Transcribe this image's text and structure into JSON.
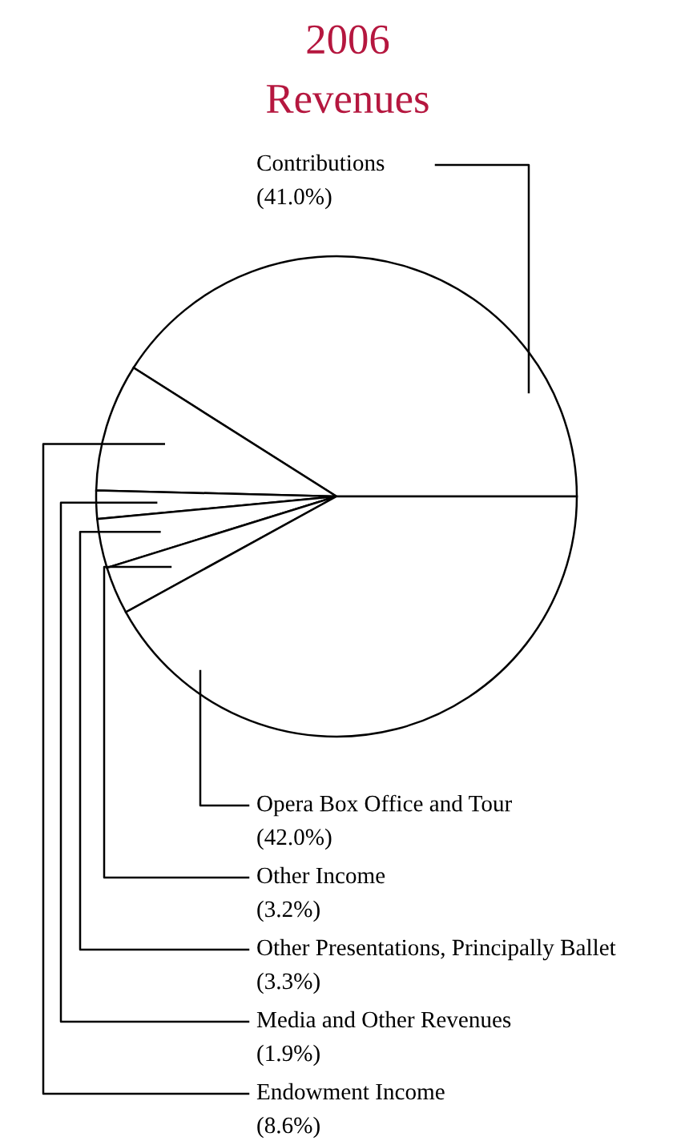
{
  "chart_data": {
    "type": "pie",
    "title": "2006",
    "subtitle": "Revenues",
    "categories": [
      "Contributions",
      "Endowment Income",
      "Media and Other Revenues",
      "Other Presentations, Principally Ballet",
      "Other Income",
      "Opera Box Office and Tour"
    ],
    "values": [
      41.0,
      8.6,
      1.9,
      3.3,
      3.2,
      42.0
    ],
    "value_labels": [
      "(41.0%)",
      "(8.6%)",
      "(1.9%)",
      "(3.3%)",
      "(3.2%)",
      "(42.0%)"
    ],
    "colors": [
      "#ffffff",
      "#ffffff",
      "#ffffff",
      "#ffffff",
      "#ffffff",
      "#ffffff"
    ]
  }
}
